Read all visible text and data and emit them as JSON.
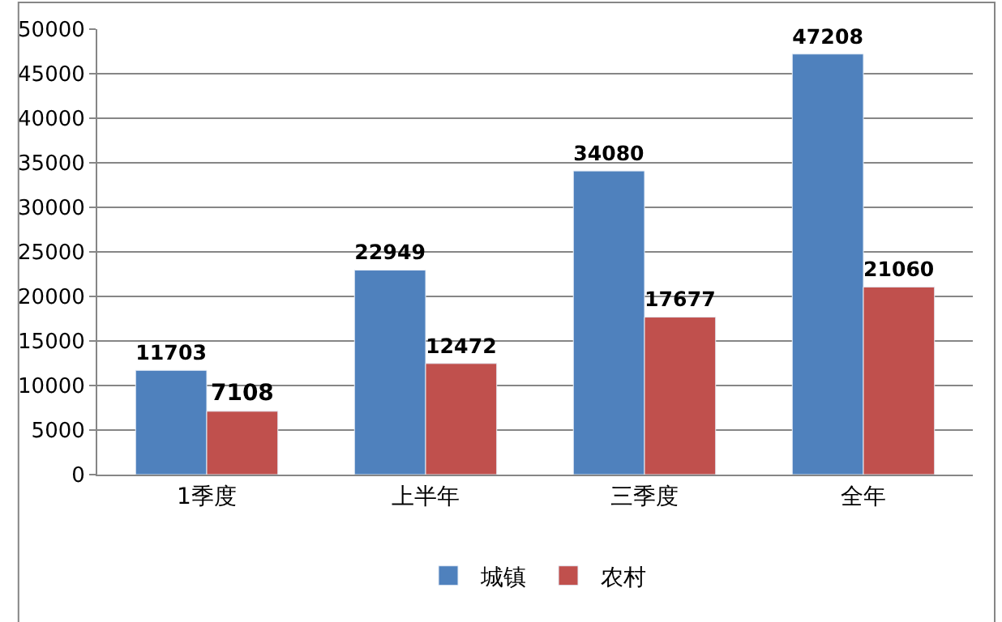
{
  "chart_data": {
    "type": "bar",
    "categories": [
      "1季度",
      "上半年",
      "三季度",
      "全年"
    ],
    "series": [
      {
        "name": "城镇",
        "color": "#4f81bd",
        "values": [
          11703,
          22949,
          34080,
          47208
        ]
      },
      {
        "name": "农村",
        "color": "#c0504d",
        "values": [
          7108,
          12472,
          17677,
          21060
        ]
      }
    ],
    "ylim": [
      0,
      50000
    ],
    "yticks": [
      0,
      5000,
      10000,
      15000,
      20000,
      25000,
      30000,
      35000,
      40000,
      45000,
      50000
    ],
    "grid": "y",
    "legend": "bottom",
    "data_labels": true
  }
}
